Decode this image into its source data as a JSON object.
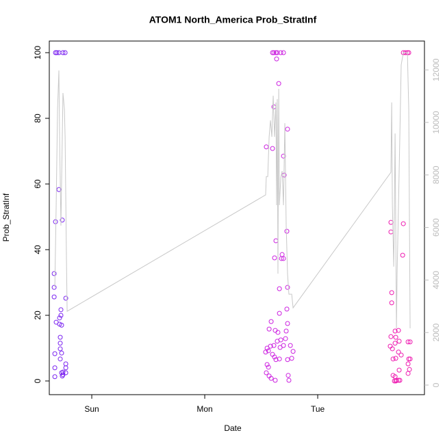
{
  "chart_data": {
    "type": "scatter",
    "title": "ATOM1 North_America Prob_StratInf",
    "x_label": "Date",
    "y_label": "Prob_StratInf",
    "xlim": [
      0.624,
      3.945
    ],
    "ylim": [
      -4.17,
      103.54
    ],
    "y2lim": [
      -365,
      13099
    ],
    "xticks": [
      {
        "value": 1,
        "label": "Sun"
      },
      {
        "value": 2,
        "label": "Mon"
      },
      {
        "value": 3,
        "label": "Tue"
      }
    ],
    "yticks": [
      0,
      20,
      40,
      60,
      80,
      100
    ],
    "y2ticks": [
      0,
      2000,
      4000,
      6000,
      8000,
      10000,
      12000
    ],
    "y2_color": "#bbbbbb",
    "series": [
      {
        "color": "#7a22f0",
        "x": [
          0.679,
          0.691,
          0.709,
          0.745,
          0.764,
          0.667,
          0.667,
          0.667,
          0.679,
          0.673,
          0.673,
          0.673,
          0.685,
          0.709,
          0.715,
          0.715,
          0.721,
          0.721,
          0.721,
          0.727,
          0.727,
          0.733,
          0.733,
          0.739,
          0.733,
          0.739,
          0.745,
          0.77,
          0.77,
          0.77,
          0.77,
          0.721,
          0.745
        ],
        "values": [
          100,
          100,
          100,
          100,
          100,
          32.7,
          28.5,
          25.6,
          48.5,
          8.3,
          4,
          1.3,
          17.9,
          58.3,
          19.2,
          17.3,
          13.3,
          9.8,
          6.7,
          21.7,
          20,
          17,
          8.5,
          49,
          2.5,
          1.5,
          1.9,
          25.2,
          5.2,
          4,
          2.5,
          11.5,
          2.7
        ]
      },
      {
        "color": "#cc22e0",
        "x": [
          2.6,
          2.612,
          2.63,
          2.642,
          2.673,
          2.697,
          2.545,
          2.6,
          2.612,
          2.636,
          2.655,
          2.618,
          2.63,
          2.697,
          2.703,
          2.733,
          2.727,
          2.685,
          2.679,
          2.697,
          2.661,
          2.733,
          2.727,
          2.661,
          2.588,
          2.57,
          2.624,
          2.648,
          2.721,
          2.733,
          2.715,
          2.673,
          2.642,
          2.612,
          2.582,
          2.552,
          2.564,
          2.539,
          2.6,
          2.667,
          2.697,
          2.758,
          2.782,
          2.77,
          2.733,
          2.661,
          2.618,
          2.63,
          2.552,
          2.564,
          2.545,
          2.57,
          2.588,
          2.624,
          2.739,
          2.745
        ],
        "values": [
          100,
          100,
          100,
          100,
          100,
          100,
          71.3,
          70.8,
          83.5,
          98.1,
          90.6,
          37.5,
          42.7,
          68.5,
          62.7,
          76.7,
          45.6,
          38.5,
          37.3,
          37.3,
          28.1,
          28.5,
          21.9,
          20.6,
          18.1,
          15.8,
          15.4,
          14.8,
          15.2,
          17.5,
          12.9,
          12.5,
          12.1,
          10.8,
          10.6,
          10,
          9.2,
          8.8,
          8.1,
          10.2,
          10.8,
          10.8,
          9,
          6.9,
          6.5,
          6.7,
          7.3,
          6.5,
          5,
          4.2,
          2.5,
          1.5,
          0.8,
          0.2,
          1.7,
          0.2
        ]
      },
      {
        "color": "#ee1ab0",
        "x": [
          3.758,
          3.776,
          3.794,
          3.806,
          3.648,
          3.648,
          3.655,
          3.655,
          3.758,
          3.752,
          3.648,
          3.642,
          3.661,
          3.685,
          3.715,
          3.691,
          3.721,
          3.685,
          3.715,
          3.739,
          3.667,
          3.691,
          3.8,
          3.818,
          3.806,
          3.818,
          3.8,
          3.812,
          3.8,
          3.721,
          3.667,
          3.685,
          3.697,
          3.715,
          3.727,
          3.679,
          3.691
        ],
        "values": [
          100,
          100,
          100,
          100,
          48.3,
          45.4,
          26.9,
          23.8,
          47.9,
          38.3,
          13.5,
          10.6,
          9.8,
          15.2,
          15.4,
          13.3,
          12.1,
          11.5,
          8.8,
          7.9,
          6.7,
          6.9,
          11.9,
          11.9,
          6.7,
          6.7,
          5.2,
          3.5,
          2.3,
          3.3,
          1.7,
          1.3,
          0.2,
          0.2,
          0.2,
          0,
          0
        ]
      },
      {
        "type": "line",
        "axis": "y2",
        "color": "#c8c8c8",
        "x": [
          0.673,
          0.685,
          0.697,
          0.709,
          0.715,
          0.727,
          0.745,
          0.758,
          0.764,
          0.776,
          0.782,
          2.539,
          2.545,
          2.558,
          2.57,
          2.582,
          2.594,
          2.606,
          2.618,
          2.63,
          2.636,
          2.642,
          2.648,
          2.655,
          2.661,
          2.673,
          2.685,
          2.697,
          2.709,
          2.721,
          2.733,
          2.745,
          2.758,
          2.77,
          2.782,
          3.648,
          3.655,
          3.661,
          3.673,
          3.679,
          3.685,
          3.697,
          3.703,
          3.727,
          3.739,
          3.758,
          3.776,
          3.794,
          3.806,
          3.818
        ],
        "values": [
          3720,
          6850,
          10500,
          11980,
          9450,
          6070,
          11120,
          10500,
          9450,
          4770,
          2810,
          7240,
          7940,
          7940,
          9450,
          10080,
          9450,
          11020,
          9450,
          10760,
          6850,
          10890,
          4240,
          11280,
          6850,
          7890,
          8150,
          6850,
          9970,
          6070,
          4240,
          3460,
          3460,
          3460,
          2940,
          8100,
          10760,
          6850,
          4510,
          6850,
          9580,
          2160,
          4240,
          9450,
          12190,
          12660,
          12660,
          12660,
          10500,
          2160
        ]
      }
    ]
  }
}
